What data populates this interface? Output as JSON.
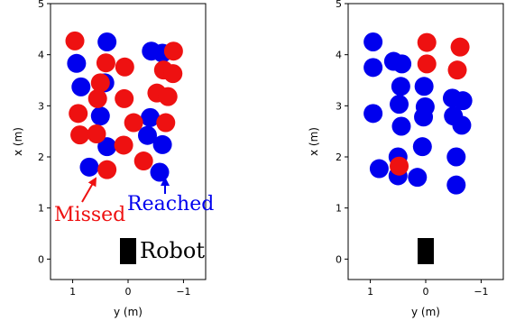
{
  "chart_data": [
    {
      "type": "scatter",
      "xlabel": "y (m)",
      "ylabel": "x (m)",
      "xlim": [
        1.4,
        -1.4
      ],
      "ylim": [
        -0.4,
        5.0
      ],
      "x_ticks": [
        1,
        0,
        -1
      ],
      "y_ticks": [
        0,
        1,
        2,
        3,
        4,
        5
      ],
      "x_tick_labels": [
        "1",
        "0",
        "−1"
      ],
      "y_tick_labels": [
        "0",
        "1",
        "2",
        "3",
        "4",
        "5"
      ],
      "series": [
        {
          "name": "Reached",
          "color": "#0000ee",
          "points": [
            [
              0.93,
              3.83
            ],
            [
              0.38,
              4.25
            ],
            [
              0.85,
              3.37
            ],
            [
              0.5,
              2.8
            ],
            [
              0.38,
              2.2
            ],
            [
              0.7,
              1.8
            ],
            [
              0.42,
              3.45
            ],
            [
              -0.42,
              4.07
            ],
            [
              -0.62,
              4.03
            ],
            [
              -0.4,
              2.77
            ],
            [
              -0.35,
              2.42
            ],
            [
              -0.62,
              2.24
            ],
            [
              -0.57,
              1.7
            ]
          ]
        },
        {
          "name": "Missed",
          "color": "#ee1111",
          "points": [
            [
              0.96,
              4.27
            ],
            [
              0.4,
              3.84
            ],
            [
              0.5,
              3.45
            ],
            [
              0.55,
              3.14
            ],
            [
              0.9,
              2.85
            ],
            [
              0.87,
              2.43
            ],
            [
              0.57,
              2.45
            ],
            [
              0.38,
              1.75
            ],
            [
              0.06,
              3.76
            ],
            [
              0.07,
              3.14
            ],
            [
              -0.1,
              2.67
            ],
            [
              0.08,
              2.23
            ],
            [
              -0.28,
              1.92
            ],
            [
              -0.52,
              3.25
            ],
            [
              -0.64,
              3.7
            ],
            [
              -0.72,
              3.18
            ],
            [
              -0.81,
              3.63
            ],
            [
              -0.82,
              4.07
            ],
            [
              -0.68,
              2.67
            ]
          ]
        }
      ],
      "robot": {
        "y": 0.0,
        "x": 0.0,
        "label": "Robot"
      },
      "annotations": {
        "missed_label": "Missed",
        "reached_label": "Reached"
      }
    },
    {
      "type": "scatter",
      "xlabel": "y (m)",
      "ylabel": "x (m)",
      "xlim": [
        1.4,
        -1.4
      ],
      "ylim": [
        -0.4,
        5.0
      ],
      "x_ticks": [
        1,
        0,
        -1
      ],
      "y_ticks": [
        0,
        1,
        2,
        3,
        4,
        5
      ],
      "x_tick_labels": [
        "1",
        "0",
        "−1"
      ],
      "y_tick_labels": [
        "0",
        "1",
        "2",
        "3",
        "4",
        "5"
      ],
      "series": [
        {
          "name": "Reached",
          "color": "#0000ee",
          "points": [
            [
              0.95,
              4.25
            ],
            [
              0.95,
              3.75
            ],
            [
              0.58,
              3.87
            ],
            [
              0.43,
              3.82
            ],
            [
              0.45,
              3.38
            ],
            [
              0.48,
              3.03
            ],
            [
              0.44,
              2.6
            ],
            [
              0.5,
              2.0
            ],
            [
              0.5,
              1.63
            ],
            [
              0.84,
              1.77
            ],
            [
              0.95,
              2.85
            ],
            [
              0.03,
              3.38
            ],
            [
              0.01,
              2.98
            ],
            [
              0.04,
              2.78
            ],
            [
              0.06,
              2.2
            ],
            [
              0.15,
              1.6
            ],
            [
              -0.48,
              3.15
            ],
            [
              -0.67,
              3.1
            ],
            [
              -0.5,
              2.8
            ],
            [
              -0.65,
              2.62
            ],
            [
              -0.55,
              2.0
            ],
            [
              -0.55,
              1.45
            ]
          ]
        },
        {
          "name": "Missed",
          "color": "#ee1111",
          "points": [
            [
              -0.02,
              4.24
            ],
            [
              -0.02,
              3.82
            ],
            [
              -0.62,
              4.15
            ],
            [
              -0.57,
              3.7
            ],
            [
              0.48,
              1.82
            ]
          ]
        }
      ],
      "robot": {
        "y": 0.0,
        "x": 0.0
      }
    }
  ]
}
